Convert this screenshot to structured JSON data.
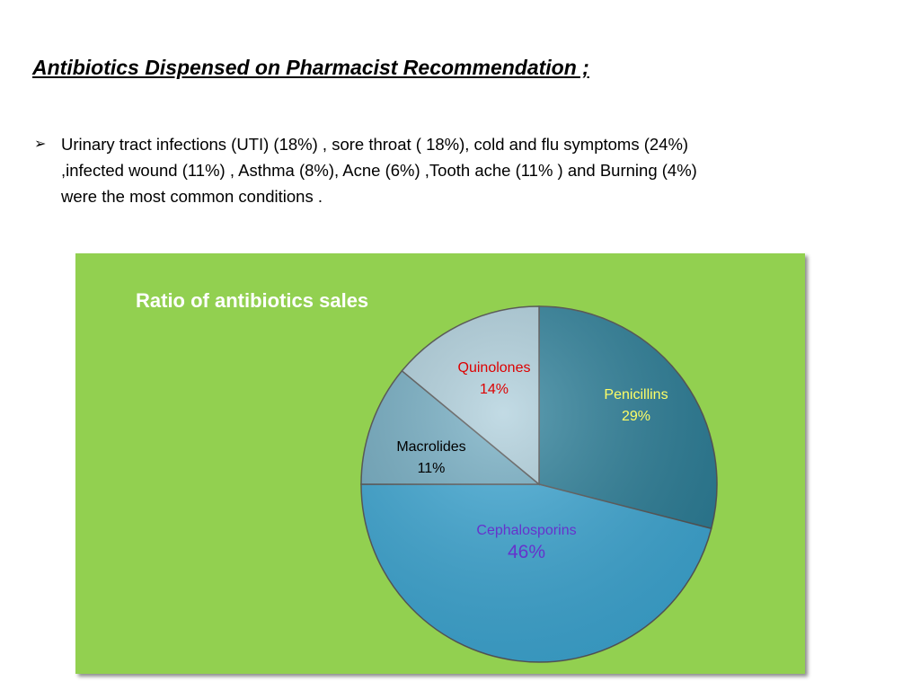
{
  "slide": {
    "title": "Antibiotics Dispensed on Pharmacist Recommendation ;",
    "bullet_marker": "➢",
    "bullet_lines": [
      "Urinary tract infections (UTI) (18%) , sore throat ( 18%), cold and flu symptoms (24%)",
      ",infected wound (11%) , Asthma (8%), Acne (6%) ,Tooth ache (11% ) and Burning (4%)",
      "were the most common conditions ."
    ]
  },
  "chart_data": {
    "type": "pie",
    "title": "Ratio of antibiotics sales",
    "background_color": "#92d050",
    "slices": [
      {
        "label": "Penicillins",
        "value": 29,
        "pct_label": "29%",
        "color": "#2b7f99",
        "label_color": "#ffff66"
      },
      {
        "label": "Cephalosporins",
        "value": 46,
        "pct_label": "46%",
        "color": "#3ea9d6",
        "label_color": "#6633cc"
      },
      {
        "label": "Macrolides",
        "value": 11,
        "pct_label": "11%",
        "color": "#74aec4",
        "label_color": "#000000"
      },
      {
        "label": "Quinolones",
        "value": 14,
        "pct_label": "14%",
        "color": "#aecfdc",
        "label_color": "#dd0000"
      }
    ]
  }
}
